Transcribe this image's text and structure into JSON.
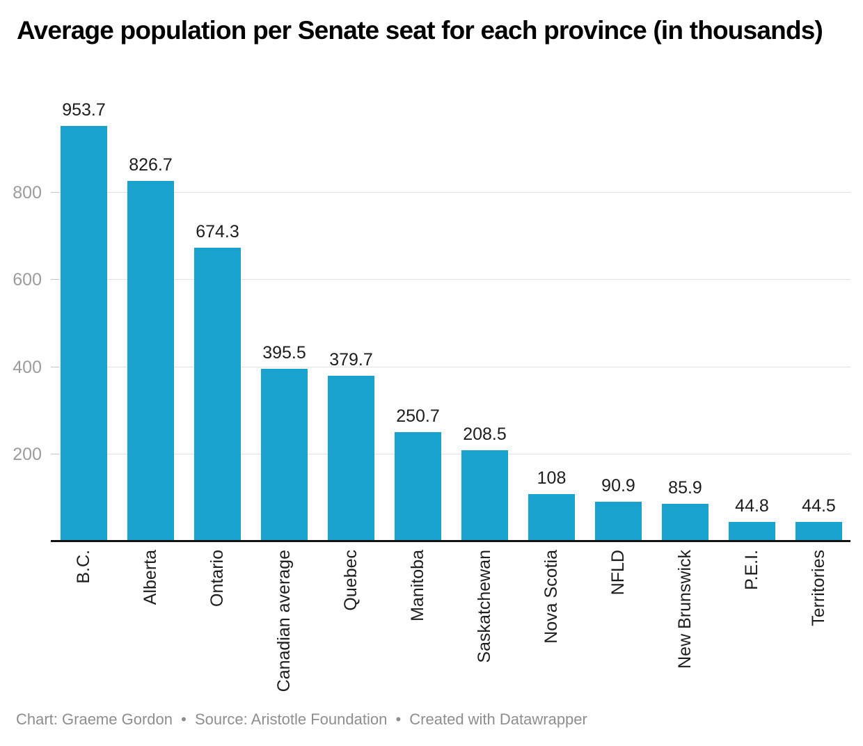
{
  "title": "Average population per Senate seat for each province (in thousands)",
  "footer": {
    "chart_credit": "Chart: Graeme Gordon",
    "source": "Source: Aristotle Foundation",
    "tool": "Created with Datawrapper",
    "separator": "•"
  },
  "colors": {
    "bar": "#1aa2cf",
    "title": "#000000",
    "data_label": "#1d1d1d",
    "axis_tick_label": "#9c9c9c",
    "gridline": "#e1e1e1",
    "gridline_dash": "#c4c4c4",
    "baseline": "#121212",
    "footer_text": "#8e8e8e",
    "background": "#ffffff"
  },
  "chart_data": {
    "type": "bar",
    "title": "Average population per Senate seat for each province (in thousands)",
    "categories": [
      "B.C.",
      "Alberta",
      "Ontario",
      "Canadian average",
      "Quebec",
      "Manitoba",
      "Saskatchewan",
      "Nova Scotia",
      "NFLD",
      "New Brunswick",
      "P.E.I.",
      "Territories"
    ],
    "values": [
      953.7,
      826.7,
      674.3,
      395.5,
      379.7,
      250.7,
      208.5,
      108,
      90.9,
      85.9,
      44.8,
      44.5
    ],
    "value_labels": [
      "953.7",
      "826.7",
      "674.3",
      "395.5",
      "379.7",
      "250.7",
      "208.5",
      "108",
      "90.9",
      "85.9",
      "44.8",
      "44.5"
    ],
    "y_ticks": [
      200,
      400,
      600,
      800
    ],
    "ylim": [
      0,
      1000
    ],
    "grid": "horizontal",
    "xlabel": "",
    "ylabel": "",
    "legend": "none",
    "category_label_rotation": -90
  }
}
